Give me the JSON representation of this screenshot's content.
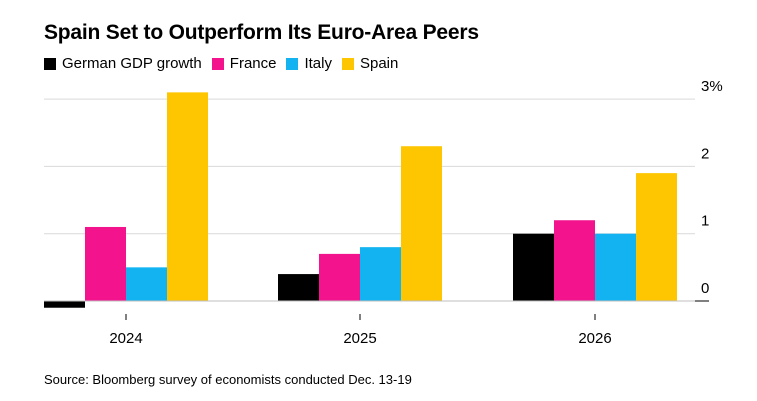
{
  "header": {
    "title": "Spain Set to Outperform Its Euro-Area Peers"
  },
  "footer": {
    "source": "Source: Bloomberg survey of economists conducted Dec. 13-19"
  },
  "chart_data": {
    "type": "bar",
    "title": "Spain Set to Outperform Its Euro-Area Peers",
    "categories": [
      "2024",
      "2025",
      "2026"
    ],
    "series": [
      {
        "name": "German GDP growth",
        "color": "#000000",
        "values": [
          -0.1,
          0.4,
          1.0
        ]
      },
      {
        "name": "France",
        "color": "#f2138d",
        "values": [
          1.1,
          0.7,
          1.2
        ]
      },
      {
        "name": "Italy",
        "color": "#12b3f0",
        "values": [
          0.5,
          0.8,
          1.0
        ]
      },
      {
        "name": "Spain",
        "color": "#fdc600",
        "values": [
          3.1,
          2.3,
          1.9
        ]
      }
    ],
    "ylim": [
      -0.1,
      3
    ],
    "yticks": [
      "0",
      "1",
      "2",
      "3%"
    ],
    "ytick_values": [
      0,
      1,
      2,
      3
    ],
    "y_axis_position": "right",
    "legend_position": "top-left",
    "grid": true
  }
}
